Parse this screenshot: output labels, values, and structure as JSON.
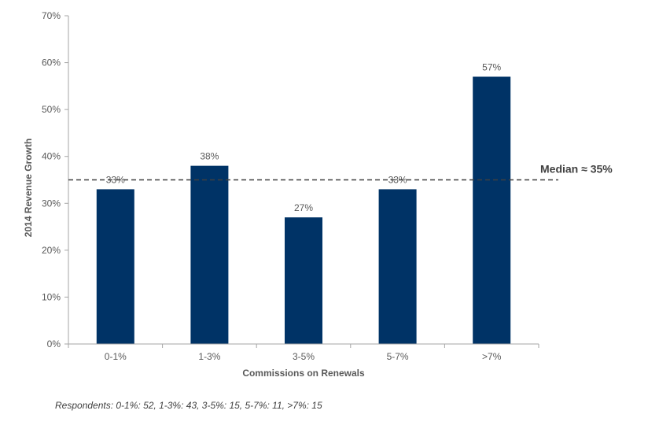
{
  "chart_data": {
    "type": "bar",
    "title": "",
    "xlabel": "Commissions on Renewals",
    "ylabel": "2014 Revenue Growth",
    "categories": [
      "0-1%",
      "1-3%",
      "3-5%",
      "5-7%",
      ">7%"
    ],
    "values": [
      33,
      38,
      27,
      33,
      57
    ],
    "data_labels": [
      "33%",
      "38%",
      "27%",
      "33%",
      "57%"
    ],
    "ylim": [
      0,
      70
    ],
    "y_ticks": [
      0,
      10,
      20,
      30,
      40,
      50,
      60,
      70
    ],
    "y_tick_labels": [
      "0%",
      "10%",
      "20%",
      "30%",
      "40%",
      "50%",
      "60%",
      "70%"
    ],
    "bar_color": "#003366",
    "grid": false,
    "reference_line": {
      "value": 35,
      "label": "Median ≈ 35%",
      "style": "dashed",
      "color": "#404040"
    }
  },
  "footnote": "Respondents: 0-1%: 52, 1-3%: 43, 3-5%: 15, 5-7%: 11, >7%: 15"
}
